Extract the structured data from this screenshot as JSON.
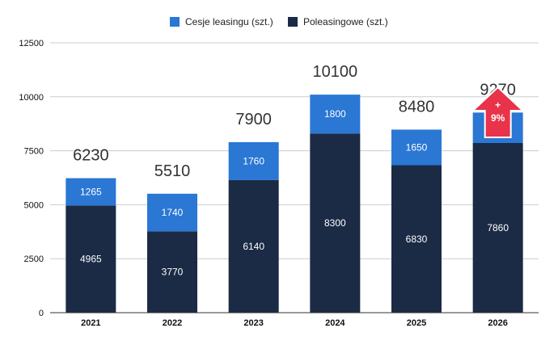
{
  "chart_data": {
    "type": "bar",
    "stacked": true,
    "categories": [
      "2021",
      "2022",
      "2023",
      "2024",
      "2025",
      "2026"
    ],
    "series": [
      {
        "name": "Poleasingowe (szt.)",
        "values": [
          4965,
          3770,
          6140,
          8300,
          6830,
          7860
        ],
        "color": "#1b2a45"
      },
      {
        "name": "Cesje leasingu (szt.)",
        "values": [
          1265,
          1740,
          1760,
          1800,
          1650,
          1410
        ],
        "color": "#2a77d4"
      }
    ],
    "totals": [
      "6230",
      "5510",
      "7900",
      "10100",
      "8480",
      "9270"
    ],
    "ylim": [
      0,
      12500
    ],
    "yticks": [
      "0",
      "2500",
      "5000",
      "7500",
      "10000",
      "12500"
    ],
    "grid": true,
    "legend_position": "top",
    "legend": [
      {
        "label": "Cesje leasingu (szt.)",
        "color": "#2a77d4"
      },
      {
        "label": "Poleasingowe (szt.)",
        "color": "#1b2a45"
      }
    ],
    "annotation": {
      "category": "2026",
      "lines": [
        "+",
        "9%"
      ],
      "color": "#e8334a",
      "shape": "up-arrow"
    }
  }
}
